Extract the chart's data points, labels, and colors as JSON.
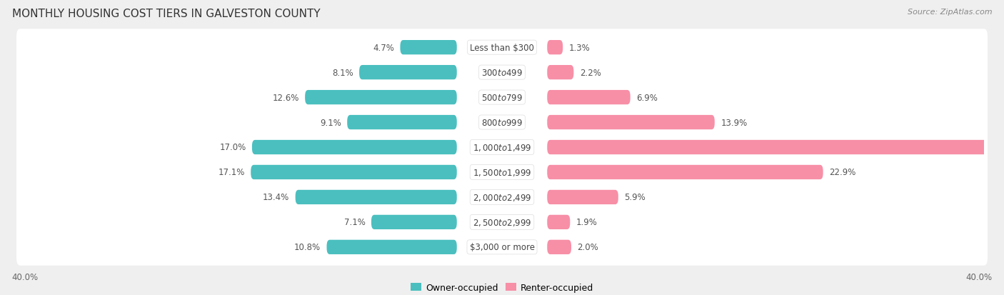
{
  "title": "MONTHLY HOUSING COST TIERS IN GALVESTON COUNTY",
  "source": "Source: ZipAtlas.com",
  "categories": [
    "Less than $300",
    "$300 to $499",
    "$500 to $799",
    "$800 to $999",
    "$1,000 to $1,499",
    "$1,500 to $1,999",
    "$2,000 to $2,499",
    "$2,500 to $2,999",
    "$3,000 or more"
  ],
  "owner_values": [
    4.7,
    8.1,
    12.6,
    9.1,
    17.0,
    17.1,
    13.4,
    7.1,
    10.8
  ],
  "renter_values": [
    1.3,
    2.2,
    6.9,
    13.9,
    39.0,
    22.9,
    5.9,
    1.9,
    2.0
  ],
  "owner_color": "#4BBFBF",
  "renter_color": "#F78FA7",
  "max_value": 40.0,
  "bg_color": "#EFEFEF",
  "row_bg_color": "#FFFFFF",
  "title_fontsize": 11,
  "label_fontsize": 8.5,
  "cat_fontsize": 8.5,
  "axis_label_fontsize": 8.5,
  "legend_fontsize": 9,
  "source_fontsize": 8
}
